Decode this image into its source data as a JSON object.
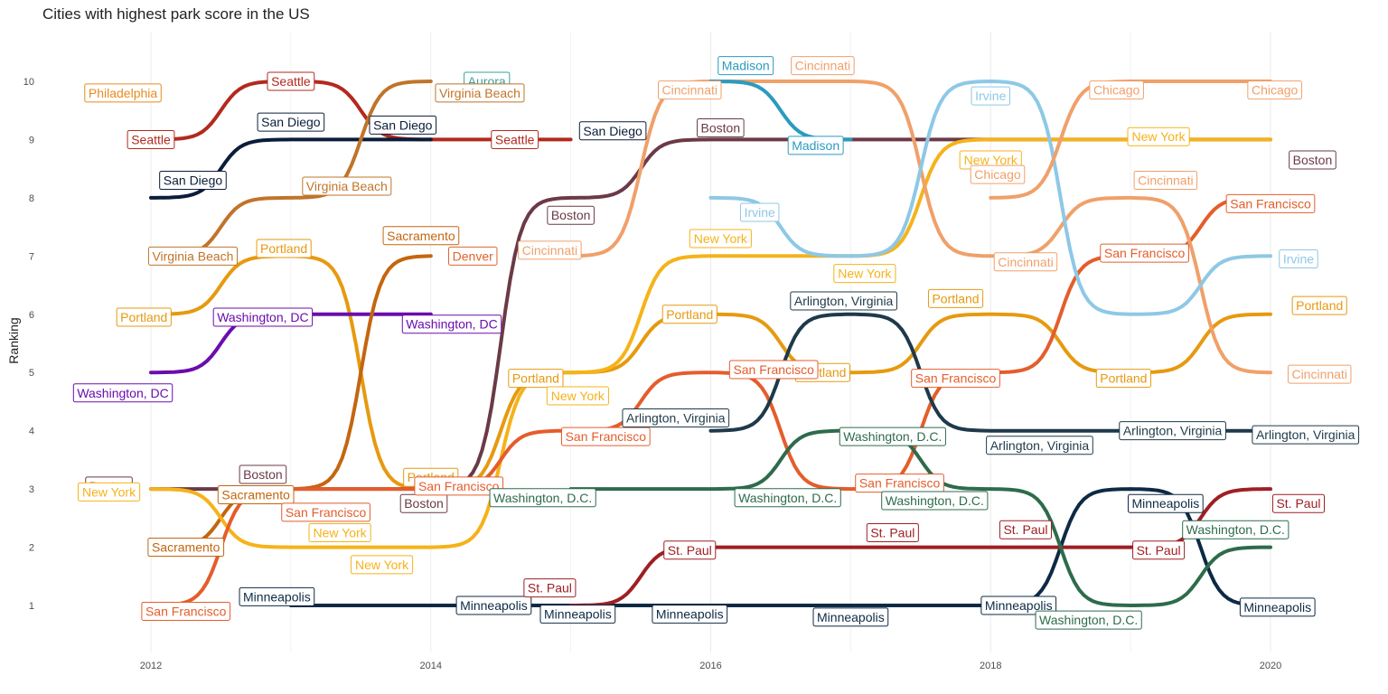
{
  "chart_data": {
    "type": "line",
    "title": "Cities with highest park score in the US",
    "xlabel": "",
    "ylabel": "Ranking",
    "xlim": [
      2012,
      2020
    ],
    "ylim": [
      1,
      10
    ],
    "x_ticks": [
      "2012",
      "2014",
      "2016",
      "2018",
      "2020"
    ],
    "y_ticks": [
      "1",
      "2",
      "3",
      "4",
      "5",
      "6",
      "7",
      "8",
      "9",
      "10"
    ],
    "grid": "vertical-minor",
    "legend": "none",
    "series": [
      {
        "name": "Seattle",
        "color": "#b22a1e",
        "points": [
          [
            2012,
            9
          ],
          [
            2013,
            10
          ],
          [
            2014,
            9
          ],
          [
            2015,
            9
          ]
        ]
      },
      {
        "name": "Philadelphia",
        "color": "#e98a1f",
        "points": [
          [
            2012,
            10
          ]
        ]
      },
      {
        "name": "San Diego",
        "color": "#0b1d3a",
        "points": [
          [
            2012,
            8
          ],
          [
            2013,
            9
          ],
          [
            2014,
            9
          ]
        ]
      },
      {
        "name": "Virginia Beach",
        "color": "#c0742a",
        "points": [
          [
            2012,
            7
          ],
          [
            2013,
            8
          ],
          [
            2014,
            10
          ]
        ]
      },
      {
        "name": "Aurora",
        "color": "#35a39b",
        "points": [
          [
            2014,
            10
          ]
        ]
      },
      {
        "name": "Portland",
        "color": "#e69a10",
        "points": [
          [
            2012,
            6
          ],
          [
            2013,
            7
          ],
          [
            2014,
            3
          ],
          [
            2015,
            5
          ],
          [
            2016,
            6
          ],
          [
            2017,
            5
          ],
          [
            2018,
            6
          ],
          [
            2019,
            5
          ],
          [
            2020,
            6
          ]
        ]
      },
      {
        "name": "Washington, DC",
        "color": "#6a0dad",
        "points": [
          [
            2012,
            5
          ],
          [
            2013,
            6
          ],
          [
            2014,
            6
          ]
        ]
      },
      {
        "name": "Sacramento",
        "color": "#c4660f",
        "points": [
          [
            2012,
            2
          ],
          [
            2013,
            3
          ],
          [
            2014,
            7
          ]
        ]
      },
      {
        "name": "Denver",
        "color": "#e0642c",
        "points": [
          [
            2014,
            7
          ]
        ]
      },
      {
        "name": "Boston",
        "color": "#6b3a46",
        "points": [
          [
            2012,
            3
          ],
          [
            2013,
            3
          ],
          [
            2014,
            3
          ],
          [
            2015,
            8
          ],
          [
            2016,
            9
          ],
          [
            2017,
            9
          ],
          [
            2018,
            9
          ],
          [
            2019,
            9
          ],
          [
            2020,
            9
          ]
        ]
      },
      {
        "name": "New York",
        "color": "#f5b31a",
        "points": [
          [
            2012,
            3
          ],
          [
            2013,
            2
          ],
          [
            2014,
            2
          ],
          [
            2015,
            5
          ],
          [
            2016,
            7
          ],
          [
            2017,
            7
          ],
          [
            2018,
            9
          ],
          [
            2019,
            9
          ],
          [
            2020,
            9
          ]
        ]
      },
      {
        "name": "San Francisco",
        "color": "#e45d2c",
        "points": [
          [
            2012,
            1
          ],
          [
            2013,
            3
          ],
          [
            2014,
            3
          ],
          [
            2015,
            4
          ],
          [
            2016,
            5
          ],
          [
            2017,
            3
          ],
          [
            2018,
            5
          ],
          [
            2019,
            7
          ],
          [
            2020,
            8
          ]
        ]
      },
      {
        "name": "Minneapolis",
        "color": "#0d2a45",
        "points": [
          [
            2013,
            1
          ],
          [
            2014,
            1
          ],
          [
            2015,
            1
          ],
          [
            2016,
            1
          ],
          [
            2017,
            1
          ],
          [
            2018,
            1
          ],
          [
            2019,
            3
          ],
          [
            2020,
            1
          ]
        ]
      },
      {
        "name": "St. Paul",
        "color": "#9e1f24",
        "points": [
          [
            2015,
            1
          ],
          [
            2016,
            2
          ],
          [
            2017,
            2
          ],
          [
            2018,
            2
          ],
          [
            2019,
            2
          ],
          [
            2020,
            3
          ]
        ]
      },
      {
        "name": "Cincinnati",
        "color": "#f0a06a",
        "points": [
          [
            2015,
            7
          ],
          [
            2016,
            10
          ],
          [
            2017,
            10
          ],
          [
            2018,
            7
          ],
          [
            2019,
            8
          ],
          [
            2020,
            5
          ]
        ]
      },
      {
        "name": "Madison",
        "color": "#2a9bbf",
        "points": [
          [
            2016,
            10
          ],
          [
            2017,
            9
          ]
        ]
      },
      {
        "name": "Irvine",
        "color": "#8ec8e6",
        "points": [
          [
            2016,
            8
          ],
          [
            2017,
            7
          ],
          [
            2018,
            10
          ],
          [
            2019,
            6
          ],
          [
            2020,
            7
          ]
        ]
      },
      {
        "name": "Chicago",
        "color": "#f0a06a",
        "points": [
          [
            2018,
            8
          ],
          [
            2019,
            10
          ],
          [
            2020,
            10
          ]
        ]
      },
      {
        "name": "Arlington, Virginia",
        "color": "#1e3a4a",
        "points": [
          [
            2016,
            4
          ],
          [
            2017,
            6
          ],
          [
            2018,
            4
          ],
          [
            2019,
            4
          ],
          [
            2020,
            4
          ]
        ]
      },
      {
        "name": "Washington, D.C.",
        "color": "#2e6b4c",
        "points": [
          [
            2015,
            3
          ],
          [
            2016,
            3
          ],
          [
            2017,
            4
          ],
          [
            2018,
            3
          ],
          [
            2019,
            1
          ],
          [
            2020,
            2
          ]
        ]
      }
    ],
    "labels": [
      {
        "text": "Seattle",
        "x": 2012,
        "y": 9,
        "color": "#b22a1e"
      },
      {
        "text": "Seattle",
        "x": 2013,
        "y": 10,
        "color": "#b22a1e"
      },
      {
        "text": "Seattle",
        "x": 2014.6,
        "y": 9,
        "color": "#b22a1e"
      },
      {
        "text": "Philadelphia",
        "x": 2011.8,
        "y": 9.8,
        "color": "#e98a1f"
      },
      {
        "text": "San Diego",
        "x": 2012.3,
        "y": 8.3,
        "color": "#0b1d3a"
      },
      {
        "text": "San Diego",
        "x": 2013,
        "y": 9.3,
        "color": "#0b1d3a"
      },
      {
        "text": "San Diego",
        "x": 2013.8,
        "y": 9.25,
        "color": "#0b1d3a"
      },
      {
        "text": "San Diego",
        "x": 2015.3,
        "y": 9.15,
        "color": "#0b1d3a"
      },
      {
        "text": "Aurora",
        "x": 2014.4,
        "y": 10,
        "color": "#35a39b"
      },
      {
        "text": "Virginia Beach",
        "x": 2014.35,
        "y": 9.8,
        "color": "#c0742a"
      },
      {
        "text": "Virginia Beach",
        "x": 2013.4,
        "y": 8.2,
        "color": "#c0742a"
      },
      {
        "text": "Virginia Beach",
        "x": 2012.3,
        "y": 7,
        "color": "#c0742a"
      },
      {
        "text": "Portland",
        "x": 2011.95,
        "y": 5.95,
        "color": "#e69a10"
      },
      {
        "text": "Portland",
        "x": 2012.95,
        "y": 7.13,
        "color": "#e69a10"
      },
      {
        "text": "Portland",
        "x": 2014,
        "y": 3.2,
        "color": "#e69a10"
      },
      {
        "text": "Portland",
        "x": 2014.75,
        "y": 4.9,
        "color": "#e69a10"
      },
      {
        "text": "Portland",
        "x": 2015.85,
        "y": 6,
        "color": "#e69a10"
      },
      {
        "text": "Portland",
        "x": 2016.8,
        "y": 5,
        "color": "#e69a10"
      },
      {
        "text": "Portland",
        "x": 2017.75,
        "y": 6.27,
        "color": "#e69a10"
      },
      {
        "text": "Portland",
        "x": 2018.95,
        "y": 4.9,
        "color": "#e69a10"
      },
      {
        "text": "Portland",
        "x": 2020.35,
        "y": 6.15,
        "color": "#e69a10"
      },
      {
        "text": "Washington, DC",
        "x": 2011.8,
        "y": 4.65,
        "color": "#6a0dad"
      },
      {
        "text": "Washington, DC",
        "x": 2012.8,
        "y": 5.95,
        "color": "#6a0dad"
      },
      {
        "text": "Washington, DC",
        "x": 2014.15,
        "y": 5.83,
        "color": "#6a0dad"
      },
      {
        "text": "Sacramento",
        "x": 2012.25,
        "y": 2,
        "color": "#c4660f"
      },
      {
        "text": "Sacramento",
        "x": 2012.75,
        "y": 2.9,
        "color": "#c4660f"
      },
      {
        "text": "Sacramento",
        "x": 2013.93,
        "y": 7.35,
        "color": "#c4660f"
      },
      {
        "text": "Denver",
        "x": 2014.3,
        "y": 7,
        "color": "#e0642c"
      },
      {
        "text": "Boston",
        "x": 2011.7,
        "y": 3.05,
        "color": "#6b3a46"
      },
      {
        "text": "Boston",
        "x": 2012.8,
        "y": 3.25,
        "color": "#6b3a46"
      },
      {
        "text": "Boston",
        "x": 2013.95,
        "y": 2.75,
        "color": "#6b3a46"
      },
      {
        "text": "Boston",
        "x": 2015,
        "y": 7.7,
        "color": "#6b3a46"
      },
      {
        "text": "Boston",
        "x": 2016.07,
        "y": 9.2,
        "color": "#6b3a46"
      },
      {
        "text": "Boston",
        "x": 2020.3,
        "y": 8.65,
        "color": "#6b3a46"
      },
      {
        "text": "New York",
        "x": 2011.7,
        "y": 2.95,
        "color": "#f5b31a"
      },
      {
        "text": "New York",
        "x": 2013.35,
        "y": 2.25,
        "color": "#f5b31a"
      },
      {
        "text": "New York",
        "x": 2013.65,
        "y": 1.7,
        "color": "#f5b31a"
      },
      {
        "text": "New York",
        "x": 2015.05,
        "y": 4.6,
        "color": "#f5b31a"
      },
      {
        "text": "New York",
        "x": 2016.07,
        "y": 7.3,
        "color": "#f5b31a"
      },
      {
        "text": "New York",
        "x": 2017.1,
        "y": 6.7,
        "color": "#f5b31a"
      },
      {
        "text": "New York",
        "x": 2018,
        "y": 8.65,
        "color": "#f5b31a"
      },
      {
        "text": "New York",
        "x": 2019.2,
        "y": 9.05,
        "color": "#f5b31a"
      },
      {
        "text": "San Francisco",
        "x": 2012.25,
        "y": 0.9,
        "color": "#e45d2c"
      },
      {
        "text": "San Francisco",
        "x": 2013.25,
        "y": 2.6,
        "color": "#e45d2c"
      },
      {
        "text": "San Francisco",
        "x": 2014.2,
        "y": 3.05,
        "color": "#e45d2c"
      },
      {
        "text": "San Francisco",
        "x": 2015.25,
        "y": 3.9,
        "color": "#e45d2c"
      },
      {
        "text": "San Francisco",
        "x": 2016.45,
        "y": 5.05,
        "color": "#e45d2c"
      },
      {
        "text": "San Francisco",
        "x": 2017.35,
        "y": 3.1,
        "color": "#e45d2c"
      },
      {
        "text": "San Francisco",
        "x": 2017.75,
        "y": 4.9,
        "color": "#e45d2c"
      },
      {
        "text": "San Francisco",
        "x": 2019.1,
        "y": 7.05,
        "color": "#e45d2c"
      },
      {
        "text": "San Francisco",
        "x": 2020,
        "y": 7.9,
        "color": "#e45d2c"
      },
      {
        "text": "Minneapolis",
        "x": 2012.9,
        "y": 1.15,
        "color": "#0d2a45"
      },
      {
        "text": "Minneapolis",
        "x": 2014.45,
        "y": 1,
        "color": "#0d2a45"
      },
      {
        "text": "Minneapolis",
        "x": 2015.05,
        "y": 0.85,
        "color": "#0d2a45"
      },
      {
        "text": "Minneapolis",
        "x": 2015.85,
        "y": 0.85,
        "color": "#0d2a45"
      },
      {
        "text": "Minneapolis",
        "x": 2017,
        "y": 0.8,
        "color": "#0d2a45"
      },
      {
        "text": "Minneapolis",
        "x": 2018.2,
        "y": 1,
        "color": "#0d2a45"
      },
      {
        "text": "Minneapolis",
        "x": 2019.25,
        "y": 2.75,
        "color": "#0d2a45"
      },
      {
        "text": "Minneapolis",
        "x": 2020.05,
        "y": 0.97,
        "color": "#0d2a45"
      },
      {
        "text": "St. Paul",
        "x": 2014.85,
        "y": 1.3,
        "color": "#9e1f24"
      },
      {
        "text": "St. Paul",
        "x": 2015.85,
        "y": 1.95,
        "color": "#9e1f24"
      },
      {
        "text": "St. Paul",
        "x": 2017.3,
        "y": 2.25,
        "color": "#9e1f24"
      },
      {
        "text": "St. Paul",
        "x": 2018.25,
        "y": 2.3,
        "color": "#9e1f24"
      },
      {
        "text": "St. Paul",
        "x": 2019.2,
        "y": 1.95,
        "color": "#9e1f24"
      },
      {
        "text": "St. Paul",
        "x": 2020.2,
        "y": 2.75,
        "color": "#9e1f24"
      },
      {
        "text": "Cincinnati",
        "x": 2014.85,
        "y": 7.1,
        "color": "#f0a06a"
      },
      {
        "text": "Cincinnati",
        "x": 2015.85,
        "y": 9.85,
        "color": "#f0a06a"
      },
      {
        "text": "Cincinnati",
        "x": 2016.8,
        "y": 10.27,
        "color": "#f0a06a"
      },
      {
        "text": "Cincinnati",
        "x": 2018.25,
        "y": 6.9,
        "color": "#f0a06a"
      },
      {
        "text": "Cincinnati",
        "x": 2019.25,
        "y": 8.3,
        "color": "#f0a06a"
      },
      {
        "text": "Cincinnati",
        "x": 2020.35,
        "y": 4.97,
        "color": "#f0a06a"
      },
      {
        "text": "Madison",
        "x": 2016.25,
        "y": 10.27,
        "color": "#2a9bbf"
      },
      {
        "text": "Madison",
        "x": 2016.75,
        "y": 8.9,
        "color": "#2a9bbf"
      },
      {
        "text": "Irvine",
        "x": 2016.35,
        "y": 7.75,
        "color": "#8ec8e6"
      },
      {
        "text": "Irvine",
        "x": 2018,
        "y": 9.75,
        "color": "#8ec8e6"
      },
      {
        "text": "Irvine",
        "x": 2020.2,
        "y": 6.95,
        "color": "#8ec8e6"
      },
      {
        "text": "Chicago",
        "x": 2018.05,
        "y": 8.4,
        "color": "#f0a06a"
      },
      {
        "text": "Chicago",
        "x": 2018.9,
        "y": 9.85,
        "color": "#f0a06a"
      },
      {
        "text": "Chicago",
        "x": 2020.03,
        "y": 9.85,
        "color": "#f0a06a"
      },
      {
        "text": "Arlington, Virginia",
        "x": 2016.95,
        "y": 6.23,
        "color": "#1e3a4a"
      },
      {
        "text": "Arlington, Virginia",
        "x": 2015.75,
        "y": 4.22,
        "color": "#1e3a4a"
      },
      {
        "text": "Arlington, Virginia",
        "x": 2018.35,
        "y": 3.75,
        "color": "#1e3a4a"
      },
      {
        "text": "Arlington, Virginia",
        "x": 2019.3,
        "y": 4,
        "color": "#1e3a4a"
      },
      {
        "text": "Arlington, Virginia",
        "x": 2020.25,
        "y": 3.93,
        "color": "#1e3a4a"
      },
      {
        "text": "Washington, D.C.",
        "x": 2014.8,
        "y": 2.85,
        "color": "#2e6b4c"
      },
      {
        "text": "Washington, D.C.",
        "x": 2016.55,
        "y": 2.85,
        "color": "#2e6b4c"
      },
      {
        "text": "Washington, D.C.",
        "x": 2017.3,
        "y": 3.9,
        "color": "#2e6b4c"
      },
      {
        "text": "Washington, D.C.",
        "x": 2017.6,
        "y": 2.8,
        "color": "#2e6b4c"
      },
      {
        "text": "Washington, D.C.",
        "x": 2018.7,
        "y": 0.75,
        "color": "#2e6b4c"
      },
      {
        "text": "Washington, D.C.",
        "x": 2019.75,
        "y": 2.3,
        "color": "#2e6b4c"
      }
    ]
  }
}
